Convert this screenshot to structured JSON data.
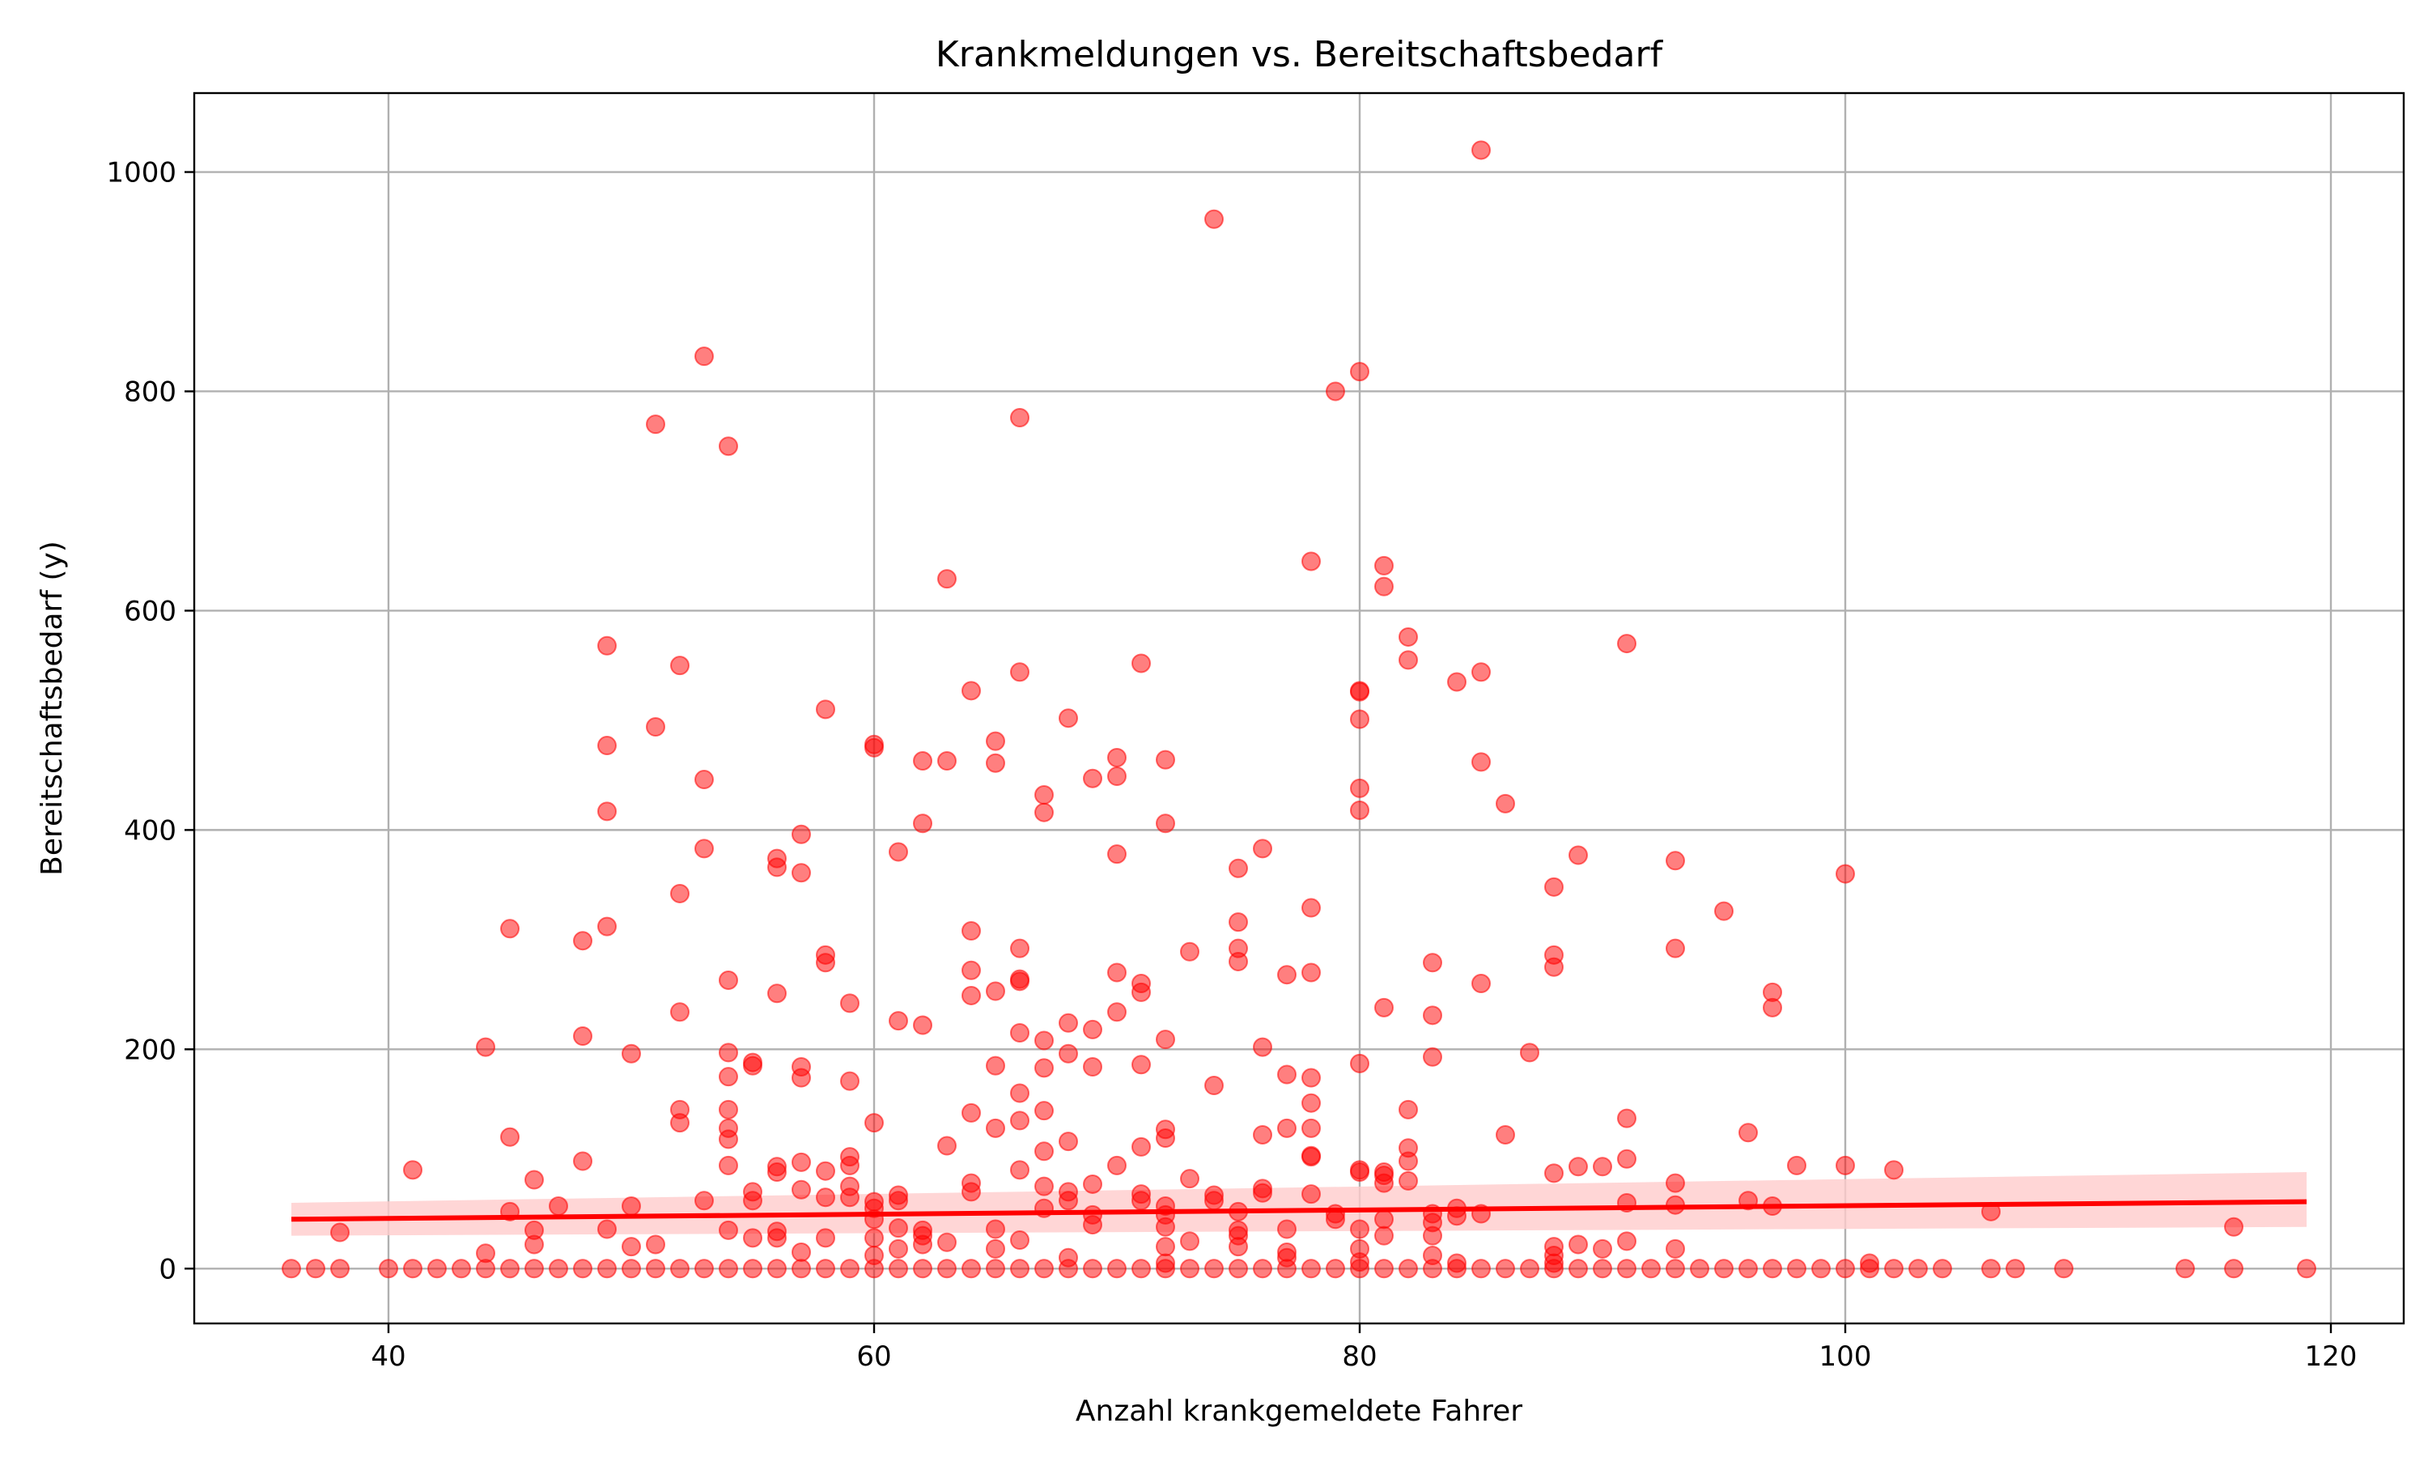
{
  "chart_data": {
    "type": "scatter",
    "title": "Krankmeldungen vs. Bereitschaftsbedarf",
    "xlabel": "Anzahl krankgemeldete Fahrer",
    "ylabel": "Bereitschaftsbedarf (y)",
    "xlim": [
      32,
      123
    ],
    "ylim": [
      -50,
      1072
    ],
    "xticks": [
      40,
      60,
      80,
      100,
      120
    ],
    "yticks": [
      0,
      200,
      400,
      600,
      800,
      1000
    ],
    "grid": true,
    "colors": {
      "points": "#ff0000",
      "regression": "#ff0000",
      "band": "#ffcccc"
    },
    "regression": {
      "x": [
        36,
        119
      ],
      "y": [
        45,
        61
      ],
      "ci_lower": [
        30,
        38
      ],
      "ci_upper": [
        60,
        88
      ]
    },
    "points": [
      [
        36,
        0
      ],
      [
        37,
        0
      ],
      [
        38,
        0
      ],
      [
        38,
        33
      ],
      [
        40,
        0
      ],
      [
        41,
        0
      ],
      [
        41,
        90
      ],
      [
        42,
        0
      ],
      [
        43,
        0
      ],
      [
        44,
        0
      ],
      [
        44,
        14
      ],
      [
        44,
        202
      ],
      [
        45,
        0
      ],
      [
        45,
        52
      ],
      [
        45,
        120
      ],
      [
        45,
        310
      ],
      [
        46,
        0
      ],
      [
        46,
        22
      ],
      [
        46,
        35
      ],
      [
        46,
        81
      ],
      [
        47,
        0
      ],
      [
        47,
        57
      ],
      [
        48,
        0
      ],
      [
        48,
        98
      ],
      [
        48,
        212
      ],
      [
        48,
        299
      ],
      [
        49,
        0
      ],
      [
        49,
        36
      ],
      [
        49,
        312
      ],
      [
        49,
        417
      ],
      [
        49,
        477
      ],
      [
        49,
        568
      ],
      [
        50,
        0
      ],
      [
        50,
        20
      ],
      [
        50,
        57
      ],
      [
        50,
        196
      ],
      [
        51,
        0
      ],
      [
        51,
        22
      ],
      [
        51,
        494
      ],
      [
        51,
        770
      ],
      [
        52,
        0
      ],
      [
        52,
        133
      ],
      [
        52,
        145
      ],
      [
        52,
        234
      ],
      [
        52,
        342
      ],
      [
        52,
        550
      ],
      [
        53,
        0
      ],
      [
        53,
        62
      ],
      [
        53,
        383
      ],
      [
        53,
        446
      ],
      [
        53,
        832
      ],
      [
        54,
        0
      ],
      [
        54,
        35
      ],
      [
        54,
        94
      ],
      [
        54,
        118
      ],
      [
        54,
        128
      ],
      [
        54,
        145
      ],
      [
        54,
        175
      ],
      [
        54,
        197
      ],
      [
        54,
        263
      ],
      [
        54,
        750
      ],
      [
        55,
        0
      ],
      [
        55,
        28
      ],
      [
        55,
        62
      ],
      [
        55,
        70
      ],
      [
        55,
        185
      ],
      [
        55,
        188
      ],
      [
        56,
        0
      ],
      [
        56,
        28
      ],
      [
        56,
        34
      ],
      [
        56,
        88
      ],
      [
        56,
        93
      ],
      [
        56,
        251
      ],
      [
        56,
        366
      ],
      [
        56,
        374
      ],
      [
        57,
        0
      ],
      [
        57,
        15
      ],
      [
        57,
        72
      ],
      [
        57,
        97
      ],
      [
        57,
        174
      ],
      [
        57,
        184
      ],
      [
        57,
        361
      ],
      [
        57,
        396
      ],
      [
        58,
        0
      ],
      [
        58,
        28
      ],
      [
        58,
        65
      ],
      [
        58,
        89
      ],
      [
        58,
        279
      ],
      [
        58,
        286
      ],
      [
        58,
        510
      ],
      [
        59,
        0
      ],
      [
        59,
        65
      ],
      [
        59,
        75
      ],
      [
        59,
        94
      ],
      [
        59,
        102
      ],
      [
        59,
        171
      ],
      [
        59,
        242
      ],
      [
        60,
        0
      ],
      [
        60,
        12
      ],
      [
        60,
        28
      ],
      [
        60,
        45
      ],
      [
        60,
        55
      ],
      [
        60,
        61
      ],
      [
        60,
        133
      ],
      [
        60,
        475
      ],
      [
        60,
        478
      ],
      [
        61,
        0
      ],
      [
        61,
        18
      ],
      [
        61,
        37
      ],
      [
        61,
        62
      ],
      [
        61,
        67
      ],
      [
        61,
        226
      ],
      [
        61,
        380
      ],
      [
        62,
        0
      ],
      [
        62,
        22
      ],
      [
        62,
        30
      ],
      [
        62,
        35
      ],
      [
        62,
        222
      ],
      [
        62,
        406
      ],
      [
        62,
        463
      ],
      [
        63,
        0
      ],
      [
        63,
        24
      ],
      [
        63,
        112
      ],
      [
        63,
        463
      ],
      [
        63,
        629
      ],
      [
        64,
        0
      ],
      [
        64,
        70
      ],
      [
        64,
        78
      ],
      [
        64,
        142
      ],
      [
        64,
        249
      ],
      [
        64,
        272
      ],
      [
        64,
        308
      ],
      [
        64,
        527
      ],
      [
        65,
        0
      ],
      [
        65,
        18
      ],
      [
        65,
        36
      ],
      [
        65,
        128
      ],
      [
        65,
        185
      ],
      [
        65,
        253
      ],
      [
        65,
        461
      ],
      [
        65,
        481
      ],
      [
        66,
        0
      ],
      [
        66,
        26
      ],
      [
        66,
        90
      ],
      [
        66,
        135
      ],
      [
        66,
        160
      ],
      [
        66,
        215
      ],
      [
        66,
        262
      ],
      [
        66,
        264
      ],
      [
        66,
        292
      ],
      [
        66,
        544
      ],
      [
        66,
        776
      ],
      [
        67,
        0
      ],
      [
        67,
        55
      ],
      [
        67,
        75
      ],
      [
        67,
        107
      ],
      [
        67,
        144
      ],
      [
        67,
        183
      ],
      [
        67,
        208
      ],
      [
        67,
        416
      ],
      [
        67,
        432
      ],
      [
        68,
        0
      ],
      [
        68,
        10
      ],
      [
        68,
        62
      ],
      [
        68,
        70
      ],
      [
        68,
        116
      ],
      [
        68,
        196
      ],
      [
        68,
        224
      ],
      [
        68,
        502
      ],
      [
        69,
        0
      ],
      [
        69,
        40
      ],
      [
        69,
        49
      ],
      [
        69,
        77
      ],
      [
        69,
        184
      ],
      [
        69,
        218
      ],
      [
        69,
        447
      ],
      [
        70,
        0
      ],
      [
        70,
        94
      ],
      [
        70,
        234
      ],
      [
        70,
        270
      ],
      [
        70,
        378
      ],
      [
        70,
        449
      ],
      [
        70,
        466
      ],
      [
        71,
        0
      ],
      [
        71,
        62
      ],
      [
        71,
        68
      ],
      [
        71,
        111
      ],
      [
        71,
        186
      ],
      [
        71,
        252
      ],
      [
        71,
        260
      ],
      [
        71,
        552
      ],
      [
        72,
        0
      ],
      [
        72,
        5
      ],
      [
        72,
        20
      ],
      [
        72,
        38
      ],
      [
        72,
        49
      ],
      [
        72,
        57
      ],
      [
        72,
        119
      ],
      [
        72,
        127
      ],
      [
        72,
        209
      ],
      [
        72,
        406
      ],
      [
        72,
        464
      ],
      [
        73,
        0
      ],
      [
        73,
        25
      ],
      [
        73,
        82
      ],
      [
        73,
        289
      ],
      [
        74,
        0
      ],
      [
        74,
        62
      ],
      [
        74,
        67
      ],
      [
        74,
        167
      ],
      [
        74,
        957
      ],
      [
        75,
        0
      ],
      [
        75,
        20
      ],
      [
        75,
        30
      ],
      [
        75,
        35
      ],
      [
        75,
        52
      ],
      [
        75,
        280
      ],
      [
        75,
        292
      ],
      [
        75,
        316
      ],
      [
        75,
        365
      ],
      [
        76,
        0
      ],
      [
        76,
        69
      ],
      [
        76,
        73
      ],
      [
        76,
        122
      ],
      [
        76,
        202
      ],
      [
        76,
        383
      ],
      [
        77,
        0
      ],
      [
        77,
        10
      ],
      [
        77,
        15
      ],
      [
        77,
        36
      ],
      [
        77,
        128
      ],
      [
        77,
        177
      ],
      [
        77,
        268
      ],
      [
        78,
        0
      ],
      [
        78,
        68
      ],
      [
        78,
        102
      ],
      [
        78,
        103
      ],
      [
        78,
        128
      ],
      [
        78,
        151
      ],
      [
        78,
        174
      ],
      [
        78,
        270
      ],
      [
        78,
        329
      ],
      [
        78,
        645
      ],
      [
        79,
        0
      ],
      [
        79,
        45
      ],
      [
        79,
        50
      ],
      [
        79,
        800
      ],
      [
        80,
        0
      ],
      [
        80,
        6
      ],
      [
        80,
        18
      ],
      [
        80,
        36
      ],
      [
        80,
        88
      ],
      [
        80,
        90
      ],
      [
        80,
        187
      ],
      [
        80,
        418
      ],
      [
        80,
        438
      ],
      [
        80,
        501
      ],
      [
        80,
        526
      ],
      [
        80,
        527
      ],
      [
        80,
        818
      ],
      [
        81,
        0
      ],
      [
        81,
        30
      ],
      [
        81,
        45
      ],
      [
        81,
        78
      ],
      [
        81,
        85
      ],
      [
        81,
        88
      ],
      [
        81,
        238
      ],
      [
        81,
        622
      ],
      [
        81,
        641
      ],
      [
        82,
        0
      ],
      [
        82,
        80
      ],
      [
        82,
        98
      ],
      [
        82,
        110
      ],
      [
        82,
        145
      ],
      [
        82,
        555
      ],
      [
        82,
        576
      ],
      [
        83,
        0
      ],
      [
        83,
        12
      ],
      [
        83,
        30
      ],
      [
        83,
        42
      ],
      [
        83,
        50
      ],
      [
        83,
        193
      ],
      [
        83,
        231
      ],
      [
        83,
        279
      ],
      [
        84,
        0
      ],
      [
        84,
        5
      ],
      [
        84,
        48
      ],
      [
        84,
        55
      ],
      [
        84,
        535
      ],
      [
        85,
        0
      ],
      [
        85,
        50
      ],
      [
        85,
        260
      ],
      [
        85,
        462
      ],
      [
        85,
        544
      ],
      [
        85,
        1020
      ],
      [
        86,
        0
      ],
      [
        86,
        122
      ],
      [
        86,
        424
      ],
      [
        87,
        0
      ],
      [
        87,
        197
      ],
      [
        88,
        0
      ],
      [
        88,
        5
      ],
      [
        88,
        12
      ],
      [
        88,
        20
      ],
      [
        88,
        87
      ],
      [
        88,
        275
      ],
      [
        88,
        286
      ],
      [
        88,
        348
      ],
      [
        89,
        0
      ],
      [
        89,
        22
      ],
      [
        89,
        93
      ],
      [
        89,
        377
      ],
      [
        90,
        0
      ],
      [
        90,
        18
      ],
      [
        90,
        93
      ],
      [
        91,
        0
      ],
      [
        91,
        25
      ],
      [
        91,
        60
      ],
      [
        91,
        100
      ],
      [
        91,
        137
      ],
      [
        91,
        570
      ],
      [
        92,
        0
      ],
      [
        93,
        0
      ],
      [
        93,
        18
      ],
      [
        93,
        58
      ],
      [
        93,
        78
      ],
      [
        93,
        292
      ],
      [
        93,
        372
      ],
      [
        94,
        0
      ],
      [
        95,
        0
      ],
      [
        95,
        326
      ],
      [
        96,
        0
      ],
      [
        96,
        62
      ],
      [
        96,
        124
      ],
      [
        97,
        0
      ],
      [
        97,
        57
      ],
      [
        97,
        238
      ],
      [
        97,
        252
      ],
      [
        98,
        0
      ],
      [
        98,
        94
      ],
      [
        99,
        0
      ],
      [
        100,
        0
      ],
      [
        100,
        94
      ],
      [
        100,
        360
      ],
      [
        101,
        0
      ],
      [
        101,
        5
      ],
      [
        102,
        0
      ],
      [
        102,
        90
      ],
      [
        103,
        0
      ],
      [
        104,
        0
      ],
      [
        106,
        0
      ],
      [
        106,
        52
      ],
      [
        107,
        0
      ],
      [
        109,
        0
      ],
      [
        114,
        0
      ],
      [
        116,
        0
      ],
      [
        116,
        38
      ],
      [
        119,
        0
      ]
    ]
  }
}
